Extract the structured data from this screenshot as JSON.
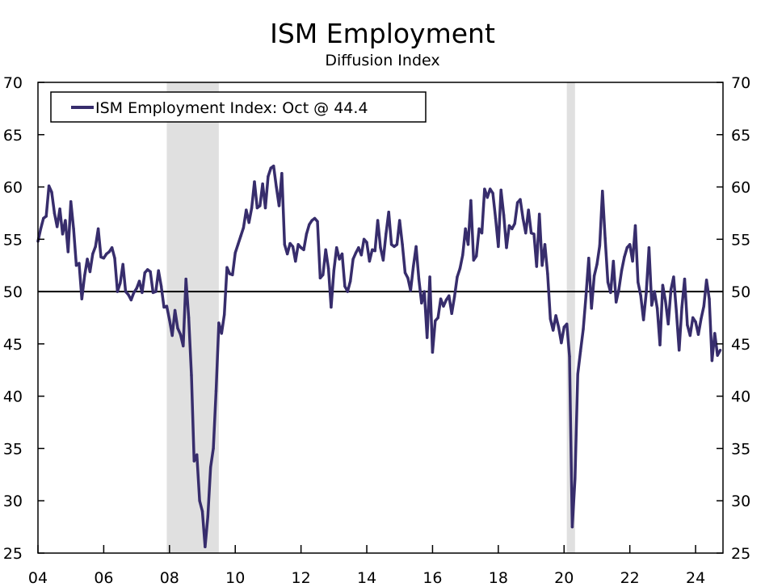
{
  "chart_data": {
    "type": "line",
    "title": "ISM Employment",
    "subtitle": "Diffusion Index",
    "xlabel": "",
    "ylabel": "",
    "ylim": [
      25,
      70
    ],
    "yticks": [
      25,
      30,
      35,
      40,
      45,
      50,
      55,
      60,
      65,
      70
    ],
    "xlim": [
      "2004-01",
      "2024-11"
    ],
    "xtick_labels": [
      "04",
      "06",
      "08",
      "10",
      "12",
      "14",
      "16",
      "18",
      "20",
      "22",
      "24"
    ],
    "xtick_years": [
      2004,
      2006,
      2008,
      2010,
      2012,
      2014,
      2016,
      2018,
      2020,
      2022,
      2024
    ],
    "grid": false,
    "reference_line": 50,
    "recession_shading": [
      [
        "2007-12",
        "2009-06"
      ],
      [
        "2020-02",
        "2020-04"
      ]
    ],
    "shading_color": "#e0e0e0",
    "legend_position": "top-left",
    "series": [
      {
        "name": "ISM Employment Index: Oct @ 44.4",
        "color": "#372d6c",
        "start": "2004-01",
        "frequency": "monthly",
        "values": [
          54.8,
          56,
          57,
          57.2,
          60.1,
          59.5,
          57.5,
          56.2,
          57.9,
          55.5,
          56.8,
          53.8,
          58.6,
          56,
          52.5,
          52.7,
          49.3,
          51.5,
          53.1,
          51.9,
          53.6,
          54.3,
          56,
          53.3,
          53.2,
          53.6,
          53.8,
          54.2,
          53.2,
          50,
          50.8,
          52.6,
          50,
          49.7,
          49.2,
          49.9,
          50.3,
          51,
          49.9,
          51.8,
          52.1,
          51.9,
          49.9,
          50,
          52,
          50.5,
          48.5,
          48.6,
          47.3,
          45.8,
          48.2,
          46.5,
          45.9,
          44.8,
          51.2,
          47.5,
          42,
          33.8,
          34.4,
          30,
          29,
          25.6,
          28.5,
          33.2,
          35,
          40.5,
          47,
          46,
          47.8,
          52.3,
          51.7,
          51.6,
          53.7,
          54.5,
          55.3,
          56.1,
          57.8,
          56.6,
          58,
          60.5,
          58,
          58.2,
          60.3,
          58,
          61,
          61.8,
          62,
          60,
          58.2,
          61.3,
          54.5,
          53.6,
          54.6,
          54.3,
          52.9,
          54.5,
          54.2,
          54,
          55.5,
          56.4,
          56.8,
          57,
          56.7,
          51.3,
          51.6,
          54,
          52.2,
          48.5,
          52,
          54.2,
          53.1,
          53.6,
          50.5,
          50,
          51,
          53.1,
          53.7,
          54.2,
          53.5,
          55,
          54.7,
          52.9,
          54,
          53.9,
          56.8,
          54.2,
          53,
          55.5,
          57.6,
          54.5,
          54.3,
          54.5,
          56.8,
          54.5,
          51.8,
          51.3,
          50.1,
          52.4,
          54.3,
          51.2,
          48.9,
          50,
          45.6,
          51.4,
          44.2,
          47.2,
          47.5,
          49.3,
          48.6,
          49.2,
          49.6,
          47.9,
          49.5,
          51.4,
          52.2,
          53.5,
          56,
          54.5,
          58.7,
          53,
          53.4,
          56,
          55.6,
          59.8,
          59,
          59.8,
          59.4,
          57,
          54.3,
          59.7,
          57.3,
          54.2,
          56.3,
          56,
          56.5,
          58.5,
          58.8,
          57,
          55.6,
          57.8,
          55.6,
          55.5,
          52.4,
          57.4,
          52.5,
          54.5,
          51.7,
          47.4,
          46.3,
          47.7,
          46.6,
          45.1,
          46.6,
          46.9,
          43.8,
          27.5,
          32.1,
          42.1,
          44.3,
          46.4,
          49.6,
          53.2,
          48.4,
          51.5,
          52.6,
          54.4,
          59.6,
          55.1,
          50.9,
          49.9,
          52.9,
          49,
          50.2,
          52,
          53.3,
          54.2,
          54.5,
          52.9,
          56.3,
          50.9,
          49.6,
          47.3,
          49.9,
          54.2,
          48.7,
          50,
          48.4,
          44.9,
          50.6,
          49.1,
          46.9,
          50.2,
          51.4,
          48.1,
          44.4,
          48.5,
          51.2,
          46.8,
          45.8,
          47.5,
          47.1,
          45.9,
          47.4,
          48.6,
          51.1,
          49.3,
          43.4,
          46,
          43.9,
          44.4
        ]
      }
    ]
  }
}
